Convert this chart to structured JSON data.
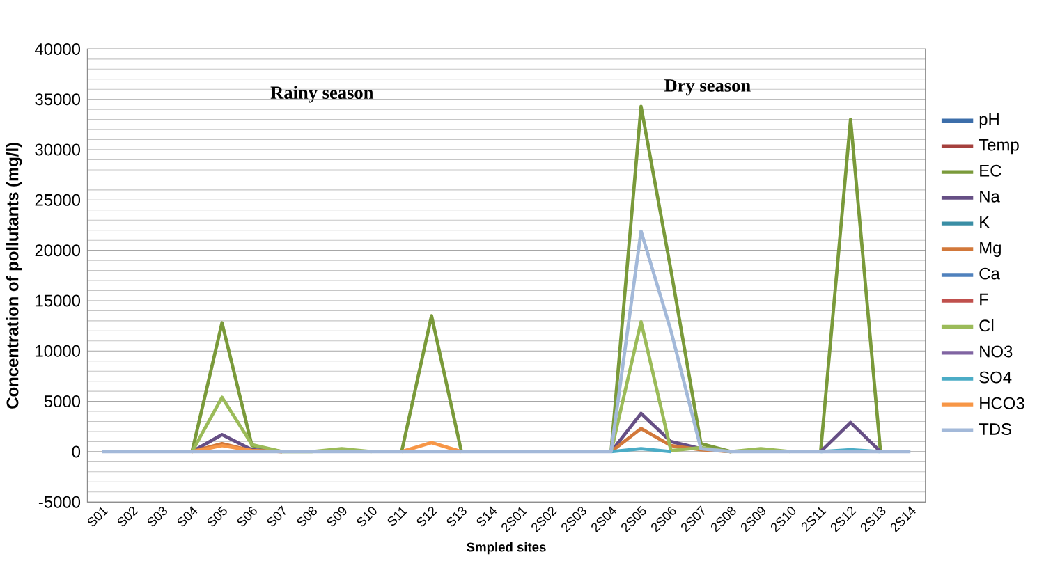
{
  "chart_data": {
    "type": "line",
    "xlabel": "Smpled sites",
    "ylabel": "Concentration of pollutants  (mg/l)",
    "annotations": [
      "Rainy season",
      "Dry season"
    ],
    "categories": [
      "S01",
      "S02",
      "S03",
      "S04",
      "S05",
      "S06",
      "S07",
      "S08",
      "S09",
      "S10",
      "S11",
      "S12",
      "S13",
      "S14",
      "2S01",
      "2S02",
      "2S03",
      "2S04",
      "2S05",
      "2S06",
      "2S07",
      "2S08",
      "2S09",
      "2S10",
      "2S11",
      "2S12",
      "2S13",
      "2S14"
    ],
    "ylim": [
      -5000,
      40000
    ],
    "yticks": [
      -5000,
      0,
      5000,
      10000,
      15000,
      20000,
      25000,
      30000,
      35000,
      40000
    ],
    "grid": "y",
    "legend": "right",
    "marker": "none",
    "line_style": "solid",
    "series": [
      {
        "name": "pH",
        "color": "#3c6eaa",
        "values": [
          null,
          null,
          null,
          null,
          null,
          null,
          null,
          null,
          null,
          null,
          null,
          null,
          null,
          null,
          null,
          null,
          null,
          null,
          null,
          null,
          null,
          null,
          null,
          null,
          null,
          null,
          null,
          null
        ]
      },
      {
        "name": "Temp",
        "color": "#a5403d",
        "values": [
          null,
          null,
          null,
          null,
          null,
          null,
          null,
          null,
          null,
          null,
          null,
          null,
          null,
          null,
          null,
          null,
          null,
          null,
          null,
          null,
          null,
          null,
          null,
          null,
          null,
          null,
          null,
          null
        ]
      },
      {
        "name": "EC",
        "color": "#7a9a3a",
        "values": [
          null,
          null,
          null,
          0,
          12800,
          600,
          0,
          null,
          null,
          null,
          0,
          13500,
          0,
          null,
          null,
          null,
          null,
          0,
          34300,
          18000,
          800,
          0,
          null,
          null,
          0,
          33000,
          0,
          null
        ]
      },
      {
        "name": "Na",
        "color": "#664f85",
        "values": [
          null,
          null,
          null,
          0,
          1700,
          200,
          0,
          null,
          null,
          null,
          null,
          null,
          null,
          null,
          null,
          null,
          null,
          0,
          3800,
          1000,
          300,
          0,
          null,
          null,
          0,
          2900,
          0,
          null
        ]
      },
      {
        "name": "K",
        "color": "#3a8ea5",
        "values": [
          null,
          null,
          null,
          null,
          null,
          null,
          null,
          null,
          null,
          null,
          null,
          null,
          null,
          null,
          null,
          null,
          null,
          null,
          null,
          null,
          null,
          null,
          null,
          null,
          null,
          null,
          null,
          null
        ]
      },
      {
        "name": "Mg",
        "color": "#d2783a",
        "values": [
          null,
          null,
          null,
          0,
          800,
          100,
          0,
          null,
          null,
          null,
          null,
          null,
          null,
          null,
          null,
          null,
          null,
          0,
          2300,
          600,
          200,
          0,
          null,
          null,
          null,
          null,
          null,
          null
        ]
      },
      {
        "name": "Ca",
        "color": "#4f81bd",
        "values": [
          null,
          null,
          null,
          null,
          null,
          null,
          null,
          null,
          null,
          null,
          null,
          null,
          null,
          null,
          null,
          null,
          null,
          null,
          null,
          null,
          null,
          null,
          null,
          null,
          null,
          null,
          null,
          null
        ]
      },
      {
        "name": "F",
        "color": "#c0504d",
        "values": [
          null,
          null,
          null,
          null,
          null,
          null,
          null,
          null,
          null,
          null,
          null,
          null,
          null,
          null,
          null,
          null,
          null,
          null,
          null,
          null,
          null,
          null,
          null,
          null,
          null,
          null,
          null,
          null
        ]
      },
      {
        "name": "Cl",
        "color": "#9bbb59",
        "values": [
          null,
          null,
          null,
          0,
          5400,
          700,
          0,
          0,
          300,
          0,
          null,
          null,
          null,
          null,
          null,
          null,
          null,
          0,
          12900,
          100,
          400,
          0,
          300,
          0,
          null,
          null,
          null,
          null
        ]
      },
      {
        "name": "NO3",
        "color": "#8064a2",
        "values": [
          null,
          null,
          null,
          null,
          null,
          null,
          null,
          null,
          null,
          null,
          null,
          null,
          null,
          null,
          null,
          null,
          null,
          null,
          null,
          null,
          null,
          null,
          null,
          null,
          null,
          null,
          null,
          null
        ]
      },
      {
        "name": "SO4",
        "color": "#4bacc6",
        "values": [
          null,
          null,
          null,
          null,
          null,
          null,
          null,
          null,
          null,
          null,
          null,
          null,
          null,
          null,
          null,
          null,
          null,
          0,
          300,
          0,
          null,
          null,
          null,
          null,
          0,
          200,
          0,
          null
        ]
      },
      {
        "name": "HCO3",
        "color": "#f79646",
        "values": [
          null,
          null,
          null,
          0,
          600,
          100,
          0,
          null,
          null,
          null,
          0,
          900,
          0,
          null,
          null,
          null,
          null,
          null,
          null,
          null,
          null,
          null,
          null,
          null,
          null,
          null,
          null,
          null
        ]
      },
      {
        "name": "TDS",
        "color": "#a3b9d9",
        "values": [
          0,
          0,
          0,
          0,
          0,
          0,
          0,
          0,
          0,
          0,
          0,
          0,
          0,
          0,
          0,
          0,
          0,
          0,
          21900,
          12000,
          300,
          0,
          0,
          0,
          0,
          0,
          0,
          0
        ]
      }
    ]
  }
}
